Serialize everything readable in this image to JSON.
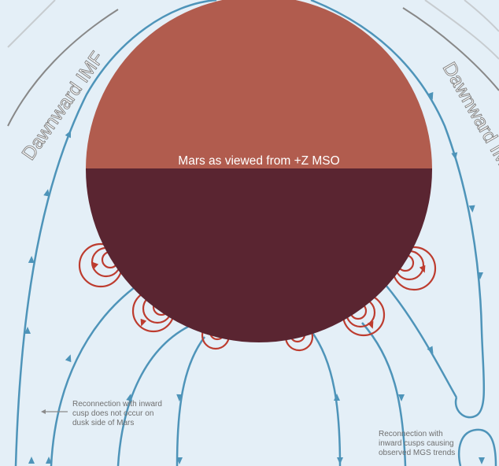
{
  "labels": {
    "mars_caption": "Mars as viewed from +Z MSO",
    "imf_left": "Dawnward IMF",
    "imf_right": "Dawnward IMF",
    "note_left_line1": "Reconnection with inward",
    "note_left_line2": "cusp does not occur on",
    "note_left_line3": "dusk side of Mars",
    "note_right_line1": "Reconnection with",
    "note_right_line2": "inward cusps causing",
    "note_right_line3": "observed MGS trends"
  },
  "colors": {
    "background": "#e4eff7",
    "mars_day": "#b15c4e",
    "mars_night": "#5a2531",
    "field_line": "#4e94b9",
    "field_line_faint_dark": "#888888",
    "field_line_faint_light": "#c7ccd0",
    "crustal_loop": "#bd3c2f",
    "label_white": "#ffffff",
    "note_text": "#6f6f6f",
    "arrow_grey": "#8a8a8a"
  }
}
